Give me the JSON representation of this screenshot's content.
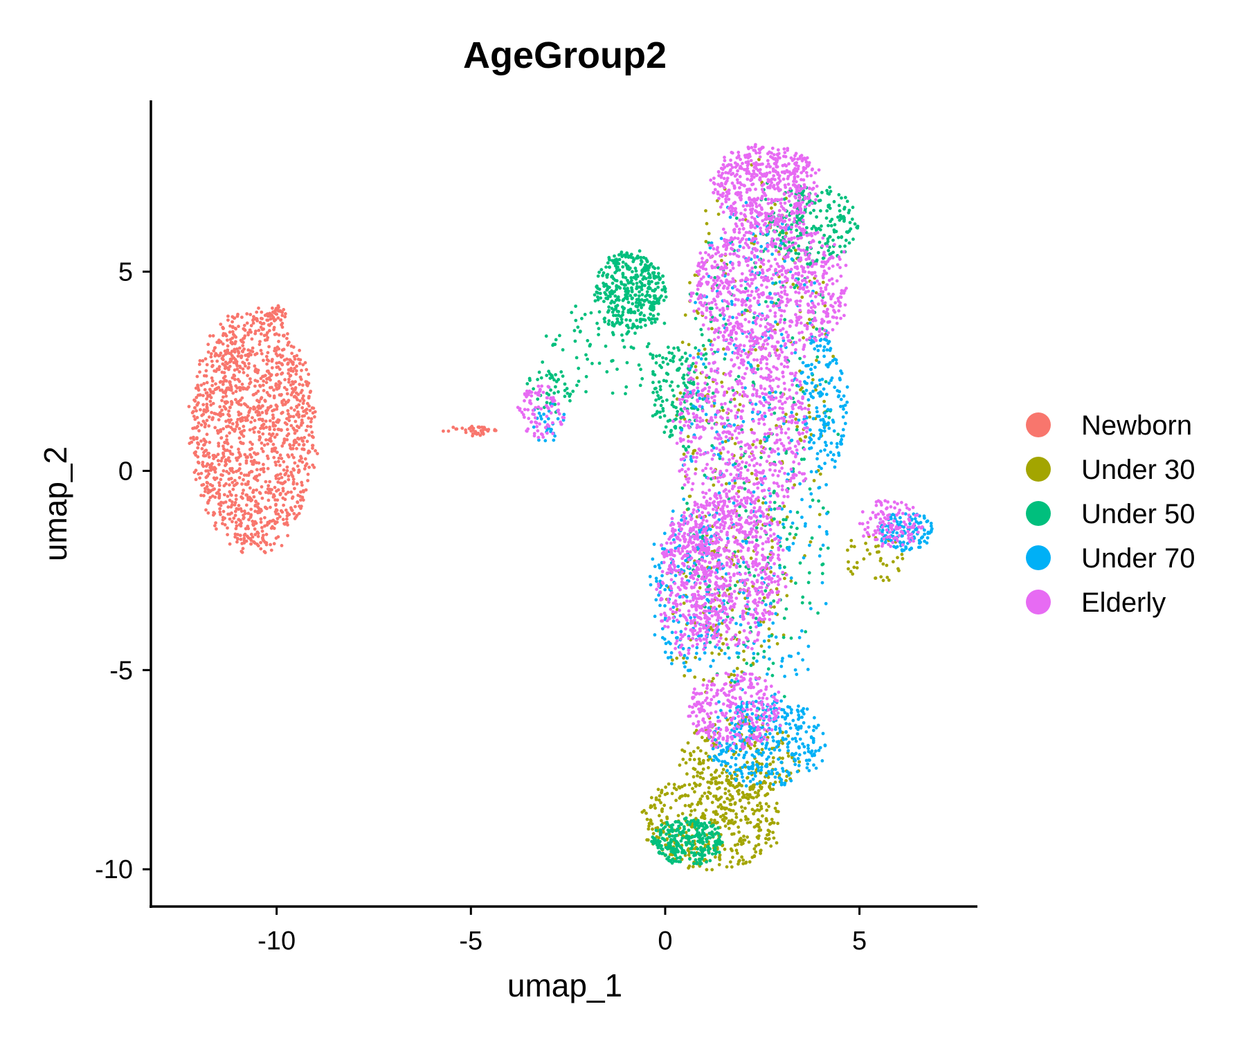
{
  "chart_data": {
    "type": "scatter",
    "title": "AgeGroup2",
    "xlabel": "umap_1",
    "ylabel": "umap_2",
    "xlim": [
      -13.2,
      8.0
    ],
    "ylim": [
      -10.9,
      9.3
    ],
    "xticks": [
      -10,
      -5,
      0,
      5
    ],
    "yticks": [
      -10,
      -5,
      0,
      5
    ],
    "xtick_labels": [
      "-10",
      "-5",
      "0",
      "5"
    ],
    "ytick_labels": [
      "-10",
      "-5",
      "0",
      "5"
    ],
    "legend_position": "right",
    "grid": false,
    "series": [
      {
        "name": "Newborn",
        "color": "#F8766D",
        "clusters": [
          {
            "cx": -10.6,
            "cy": 1.0,
            "rx": 1.6,
            "ry": 3.0,
            "n": 1400
          },
          {
            "cx": -10.0,
            "cy": 3.9,
            "rx": 0.25,
            "ry": 0.25,
            "n": 40
          },
          {
            "cx": -5.0,
            "cy": 1.0,
            "rx": 0.7,
            "ry": 0.12,
            "n": 40
          }
        ]
      },
      {
        "name": "Under 30",
        "color": "#A3A500",
        "clusters": [
          {
            "cx": 1.2,
            "cy": -8.8,
            "rx": 1.8,
            "ry": 1.2,
            "n": 420
          },
          {
            "cx": 1.9,
            "cy": -7.2,
            "rx": 1.5,
            "ry": 1.1,
            "n": 200
          },
          {
            "cx": 2.3,
            "cy": 2.0,
            "rx": 2.0,
            "ry": 5.5,
            "n": 250
          },
          {
            "cx": 1.5,
            "cy": -3.5,
            "rx": 1.6,
            "ry": 2.0,
            "n": 120
          },
          {
            "cx": 5.4,
            "cy": -2.2,
            "rx": 0.8,
            "ry": 0.6,
            "n": 40
          }
        ]
      },
      {
        "name": "Under 50",
        "color": "#00BF7D",
        "clusters": [
          {
            "cx": -0.9,
            "cy": 4.5,
            "rx": 0.9,
            "ry": 1.0,
            "n": 380
          },
          {
            "cx": 0.6,
            "cy": -9.3,
            "rx": 0.9,
            "ry": 0.6,
            "n": 280
          },
          {
            "cx": 3.8,
            "cy": 6.2,
            "rx": 1.2,
            "ry": 1.0,
            "n": 220
          },
          {
            "cx": 0.2,
            "cy": 2.0,
            "rx": 0.6,
            "ry": 1.2,
            "n": 120
          },
          {
            "cx": 2.4,
            "cy": 0.5,
            "rx": 2.0,
            "ry": 6.5,
            "n": 300
          },
          {
            "cx": -1.5,
            "cy": 3.0,
            "rx": 1.8,
            "ry": 1.2,
            "n": 80
          },
          {
            "cx": -3.0,
            "cy": 2.0,
            "rx": 0.6,
            "ry": 0.6,
            "n": 40
          }
        ]
      },
      {
        "name": "Under 70",
        "color": "#00B0F6",
        "clusters": [
          {
            "cx": 2.6,
            "cy": -6.8,
            "rx": 1.5,
            "ry": 1.1,
            "n": 350
          },
          {
            "cx": 4.1,
            "cy": 1.8,
            "rx": 0.6,
            "ry": 1.8,
            "n": 140
          },
          {
            "cx": 6.2,
            "cy": -1.5,
            "rx": 0.7,
            "ry": 0.5,
            "n": 130
          },
          {
            "cx": 2.3,
            "cy": 0.0,
            "rx": 2.0,
            "ry": 7.0,
            "n": 400
          },
          {
            "cx": 0.6,
            "cy": -3.0,
            "rx": 1.0,
            "ry": 2.0,
            "n": 180
          },
          {
            "cx": -3.0,
            "cy": 1.2,
            "rx": 0.5,
            "ry": 0.5,
            "n": 30
          }
        ]
      },
      {
        "name": "Elderly",
        "color": "#E76BF3",
        "clusters": [
          {
            "cx": 2.6,
            "cy": 7.2,
            "rx": 1.4,
            "ry": 1.0,
            "n": 500
          },
          {
            "cx": 2.7,
            "cy": 4.6,
            "rx": 2.0,
            "ry": 1.8,
            "n": 800
          },
          {
            "cx": 2.0,
            "cy": 1.0,
            "rx": 1.7,
            "ry": 2.5,
            "n": 700
          },
          {
            "cx": 1.6,
            "cy": -2.5,
            "rx": 1.5,
            "ry": 2.0,
            "n": 600
          },
          {
            "cx": 1.8,
            "cy": -6.0,
            "rx": 1.2,
            "ry": 1.0,
            "n": 300
          },
          {
            "cx": 0.7,
            "cy": -2.8,
            "rx": 0.9,
            "ry": 1.8,
            "n": 300
          },
          {
            "cx": 5.8,
            "cy": -1.3,
            "rx": 0.8,
            "ry": 0.6,
            "n": 120
          },
          {
            "cx": -3.2,
            "cy": 1.5,
            "rx": 0.6,
            "ry": 0.7,
            "n": 90
          }
        ]
      }
    ]
  }
}
